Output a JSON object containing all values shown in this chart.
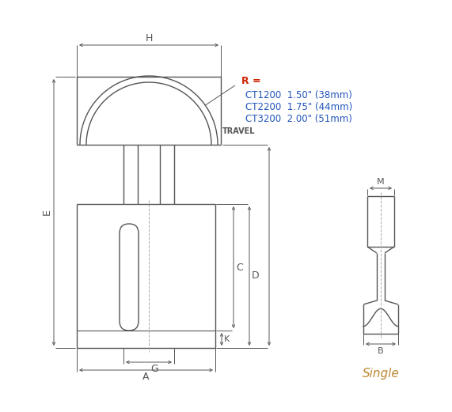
{
  "bg_color": "#ffffff",
  "line_color": "#555555",
  "dim_color": "#555555",
  "text_color_blue": "#2255bb",
  "text_color_single": "#bb8833",
  "annotation_color": "#cc2200",
  "r_label": "R =",
  "ct_lines": [
    "CT1200  1.50\" (38mm)",
    "CT2200  1.75\" (44mm)",
    "CT3200  2.00\" (51mm)"
  ],
  "single_label": "Single"
}
